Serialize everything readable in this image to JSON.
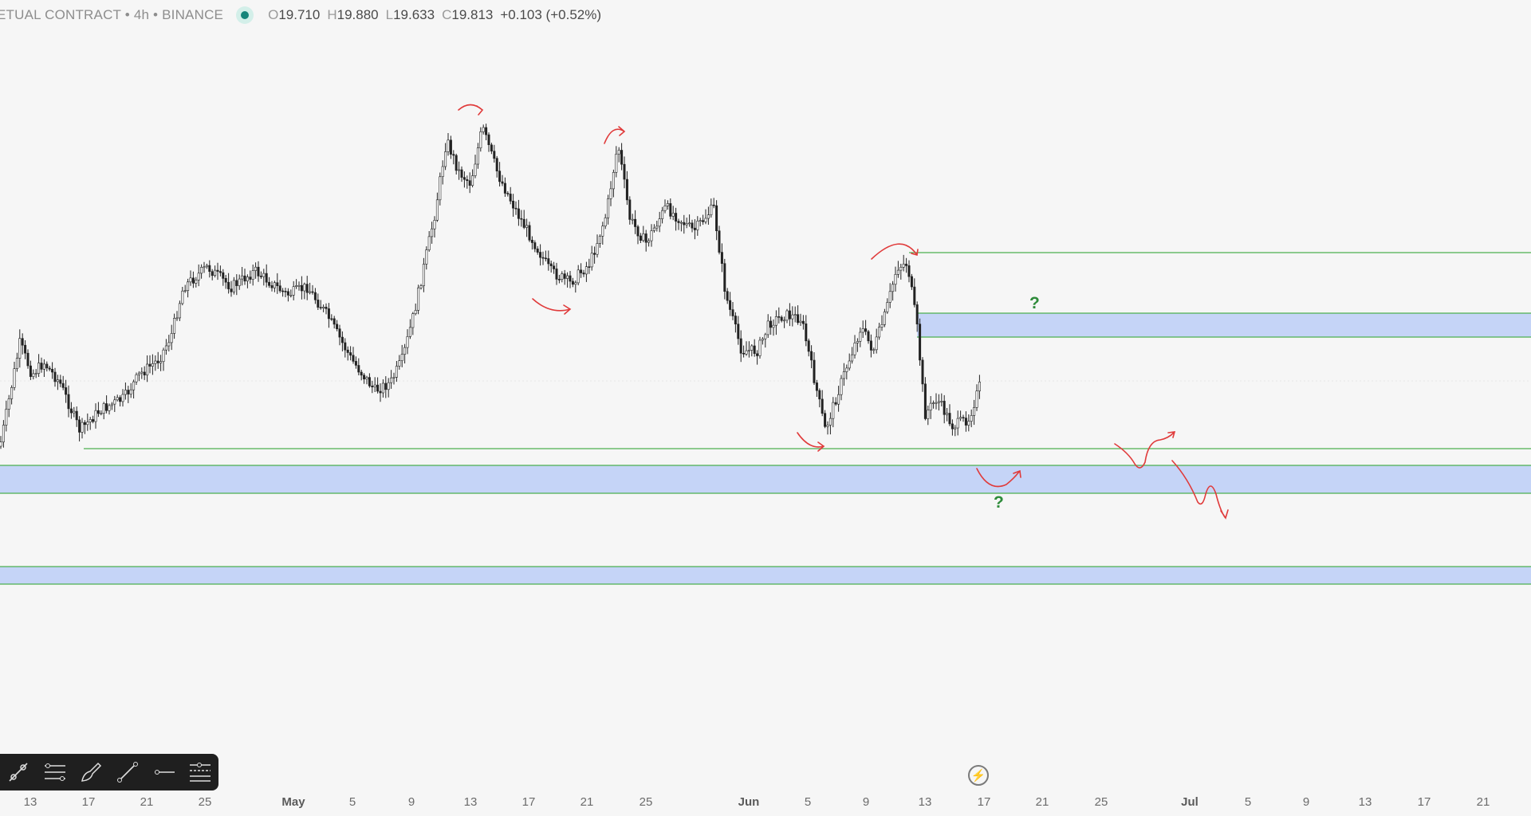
{
  "header": {
    "symbol": "ETUAL CONTRACT • 4h • BINANCE",
    "open_key": "O",
    "open": "19.710",
    "high_key": "H",
    "high": "19.880",
    "low_key": "L",
    "low": "19.633",
    "close_key": "C",
    "close": "19.813",
    "change": "+0.103 (+0.52%)",
    "status_color": "#16857a"
  },
  "x_axis": {
    "ticks": [
      {
        "label": "13",
        "major": false
      },
      {
        "label": "17",
        "major": false
      },
      {
        "label": "21",
        "major": false
      },
      {
        "label": "25",
        "major": false
      },
      {
        "label": "May",
        "major": true
      },
      {
        "label": "5",
        "major": false
      },
      {
        "label": "9",
        "major": false
      },
      {
        "label": "13",
        "major": false
      },
      {
        "label": "17",
        "major": false
      },
      {
        "label": "21",
        "major": false
      },
      {
        "label": "25",
        "major": false
      },
      {
        "label": "Jun",
        "major": true
      },
      {
        "label": "5",
        "major": false
      },
      {
        "label": "9",
        "major": false
      },
      {
        "label": "13",
        "major": false
      },
      {
        "label": "17",
        "major": false
      },
      {
        "label": "21",
        "major": false
      },
      {
        "label": "25",
        "major": false
      },
      {
        "label": "Jul",
        "major": true
      },
      {
        "label": "5",
        "major": false
      },
      {
        "label": "9",
        "major": false
      },
      {
        "label": "13",
        "major": false
      },
      {
        "label": "17",
        "major": false
      },
      {
        "label": "21",
        "major": false
      }
    ]
  },
  "annotations": {
    "question_upper": "?",
    "question_lower": "?",
    "question_color": "#2e8b3a",
    "arrow_color": "#e03b3b",
    "zone_color": "#c5d4f7",
    "line_color": "#4caf50"
  },
  "drawing_toolbar": {
    "tools": [
      "trend-angle-icon",
      "fib-levels-icon",
      "brush-icon",
      "trend-line-icon",
      "horizontal-ray-icon",
      "settings-levels-icon"
    ]
  },
  "bottom": {
    "flash_icon": "⚡"
  }
}
